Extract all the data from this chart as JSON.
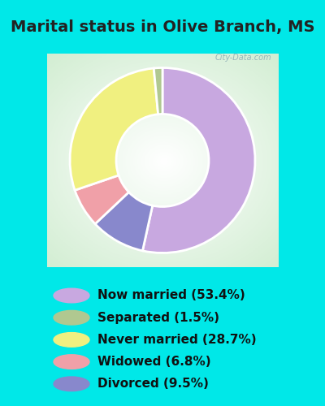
{
  "title": "Marital status in Olive Branch, MS",
  "slices": [
    53.4,
    1.5,
    28.7,
    6.8,
    9.5
  ],
  "labels": [
    "Now married (53.4%)",
    "Separated (1.5%)",
    "Never married (28.7%)",
    "Widowed (6.8%)",
    "Divorced (9.5%)"
  ],
  "colors": [
    "#c8a8e0",
    "#b0c890",
    "#f0f080",
    "#f0a0a8",
    "#8888cc"
  ],
  "background_color": "#00e8e8",
  "chart_bg": "#d8ecd8",
  "title_fontsize": 14,
  "legend_fontsize": 11,
  "watermark": "City-Data.com",
  "pie_order": [
    0,
    4,
    3,
    2,
    1
  ],
  "startangle": 90
}
